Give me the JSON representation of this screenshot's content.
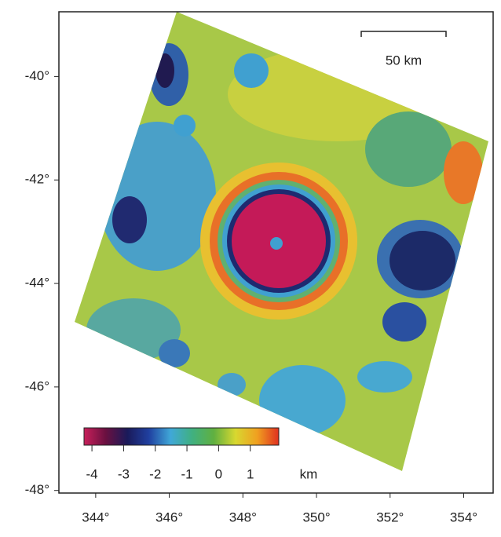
{
  "chart_data": {
    "type": "map",
    "xlim": [
      343,
      354.8
    ],
    "ylim": [
      -48.05,
      -38.75
    ],
    "xticks": [
      {
        "value": 344,
        "label": "344°"
      },
      {
        "value": 346,
        "label": "346°"
      },
      {
        "value": 348,
        "label": "348°"
      },
      {
        "value": 350,
        "label": "350°"
      },
      {
        "value": 352,
        "label": "352°"
      },
      {
        "value": 354,
        "label": "354°"
      }
    ],
    "yticks": [
      {
        "value": -40,
        "label": "-40°"
      },
      {
        "value": -42,
        "label": "-42°"
      },
      {
        "value": -44,
        "label": "-44°"
      },
      {
        "value": -46,
        "label": "-46°"
      },
      {
        "value": -48,
        "label": "-48°"
      }
    ],
    "colorbar": {
      "lim": [
        -4.25,
        1.9
      ],
      "ticks": [
        -4,
        -3,
        -2,
        -1,
        0,
        1
      ],
      "unit": "km",
      "colors": [
        "#c8205a",
        "#6a1040",
        "#1a1a5a",
        "#2040a0",
        "#40a8d8",
        "#40b080",
        "#60b040",
        "#d8d830",
        "#f0a020",
        "#e03020"
      ]
    },
    "scale_bar": {
      "label": "50 km"
    }
  }
}
